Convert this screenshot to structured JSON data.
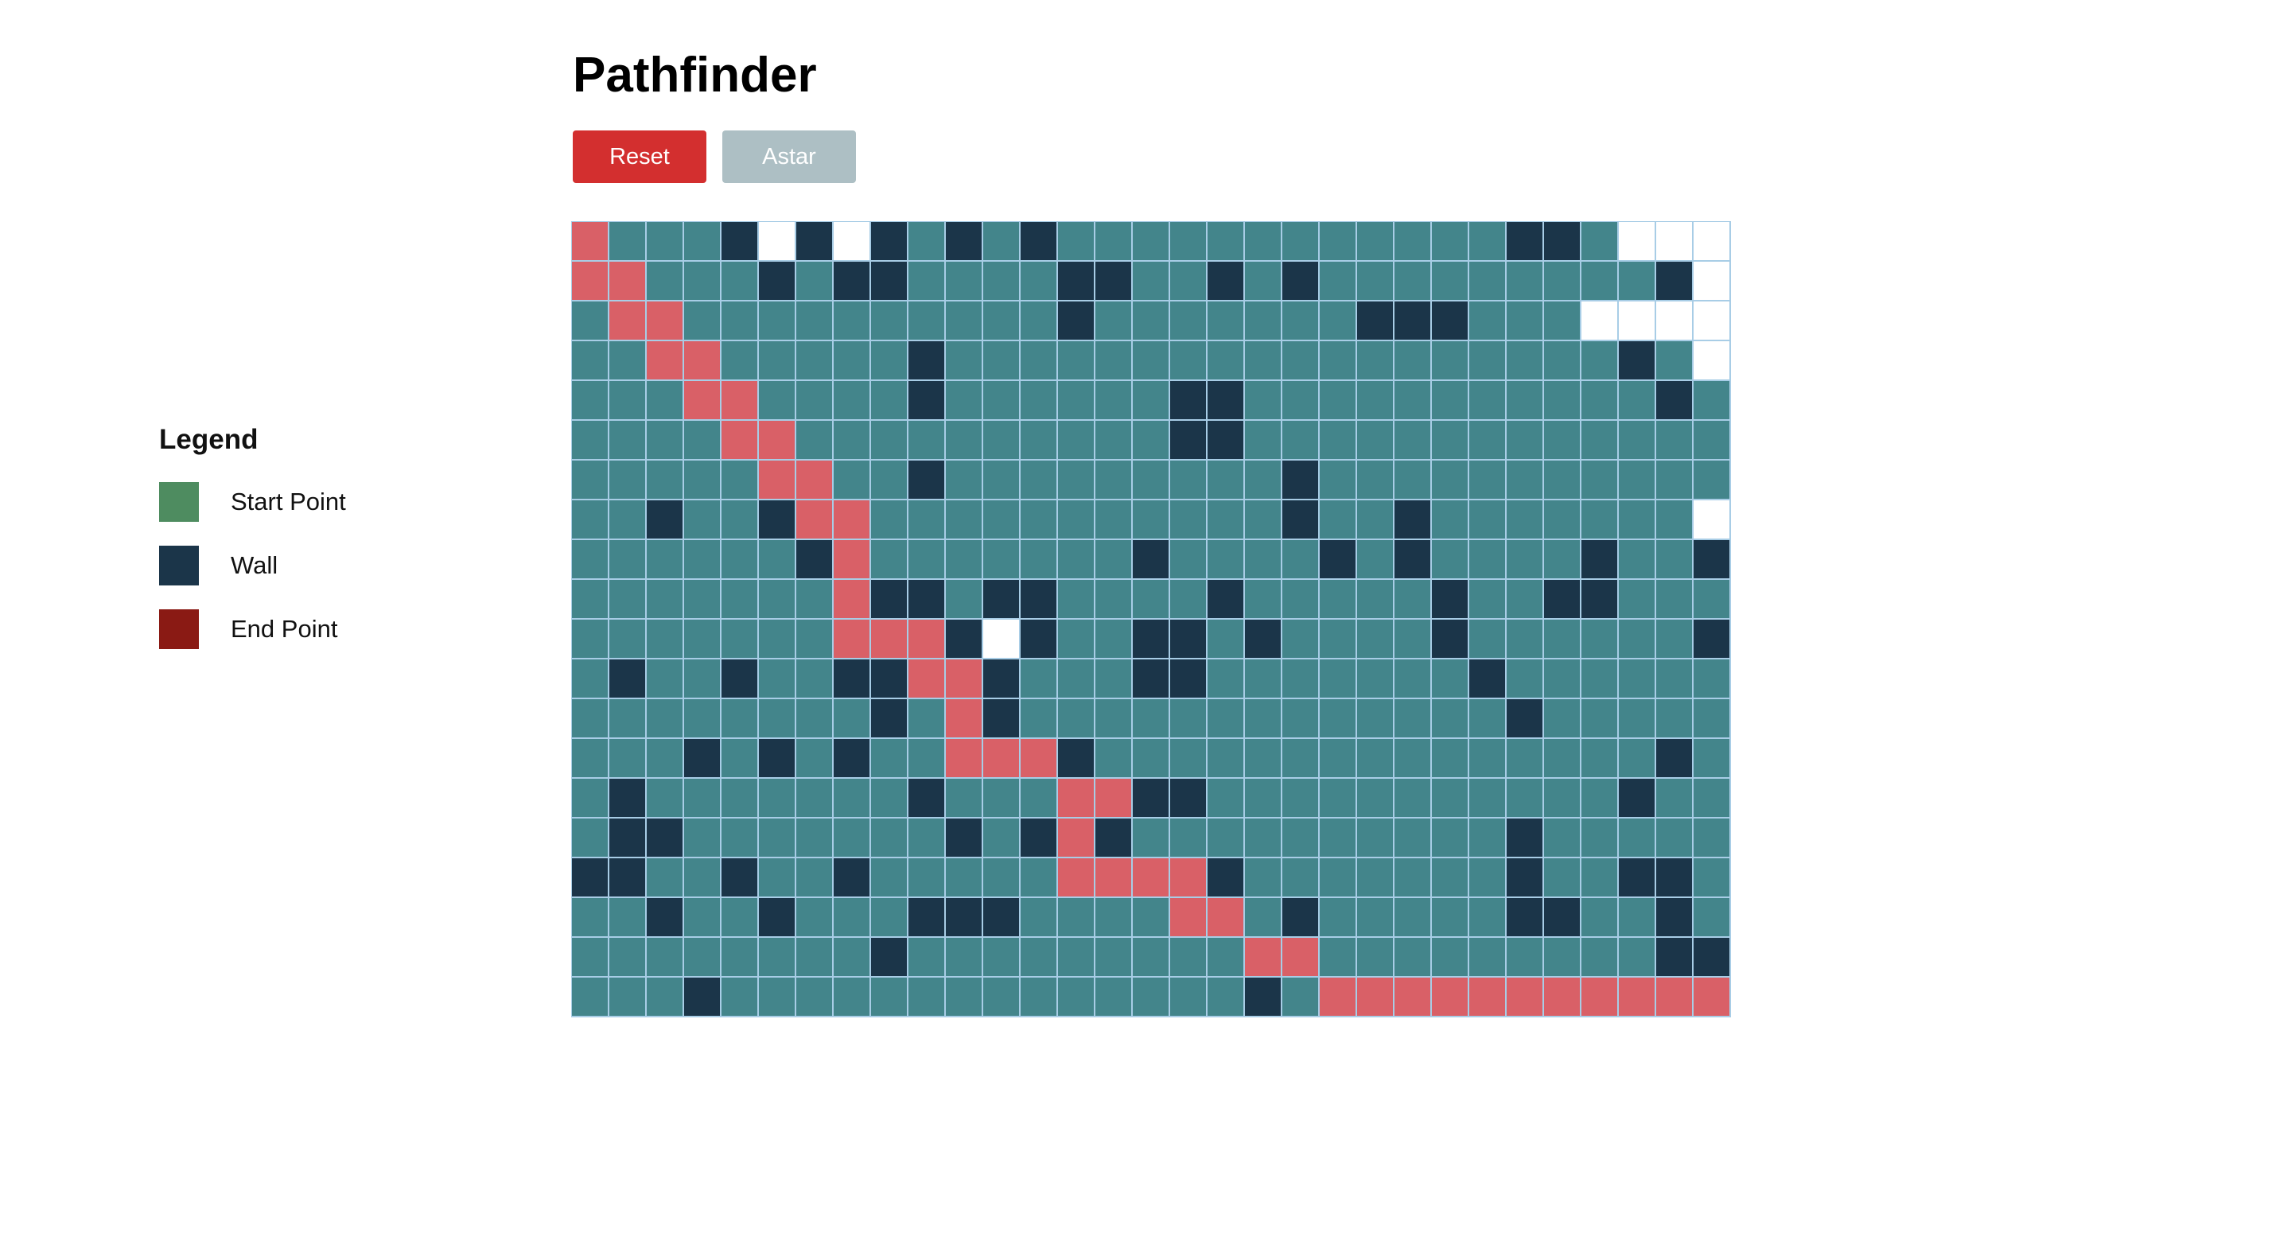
{
  "app": {
    "title": "Pathfinder"
  },
  "toolbar": {
    "reset_label": "Reset",
    "astar_label": "Astar"
  },
  "legend": {
    "title": "Legend",
    "items": [
      {
        "label": "Start Point",
        "color": "#4e8c60"
      },
      {
        "label": "Wall",
        "color": "#1b3549"
      },
      {
        "label": "End Point",
        "color": "#8a1a14"
      }
    ]
  },
  "colors": {
    "visited": "#43858b",
    "wall": "#1b3549",
    "path": "#d96067",
    "empty": "#ffffff",
    "grid_line": "#a8cde6",
    "reset_button": "#d32f2f",
    "astar_button_disabled": "#adbfc4"
  },
  "grid": {
    "legend_key": "P = path, W = wall, . = visited, E = unvisited",
    "rows": [
      "P...WEWEW.W.W............WW.EEE",
      "PP...W.WW....WW..W.W.........WE",
      ".PP..........W.......WWW...EEEE",
      "..PP.....W..................W.EE",
      "...PP....W......WW...........W.E",
      "....PP..........WW.............",
      ".....PP..W.........W...........",
      "..W..WPP...........W..W.......E",
      "......WP.......W....W.W....W..WW",
      ".......PWW.WW....W.....W..WW...E",
      ".......PPPWEW..WW.W....W......WE",
      ".W..W..WWPPW...WW.......W......W",
      "........W.PW.............W.....E",
      "...W.W.W..PPPW...............W.WWE",
      ".W.......W...PPWW...........W...E",
      ".WW.......W.WPW..........W.....E",
      "WW..W..W.....PPPPW.......W..WW.WE",
      "..W..W...WWW....PP.W.....WW..W..E",
      "........W.........PP.........WWW",
      "...W..............W.PPPPPPPPPPPPP"
    ]
  }
}
